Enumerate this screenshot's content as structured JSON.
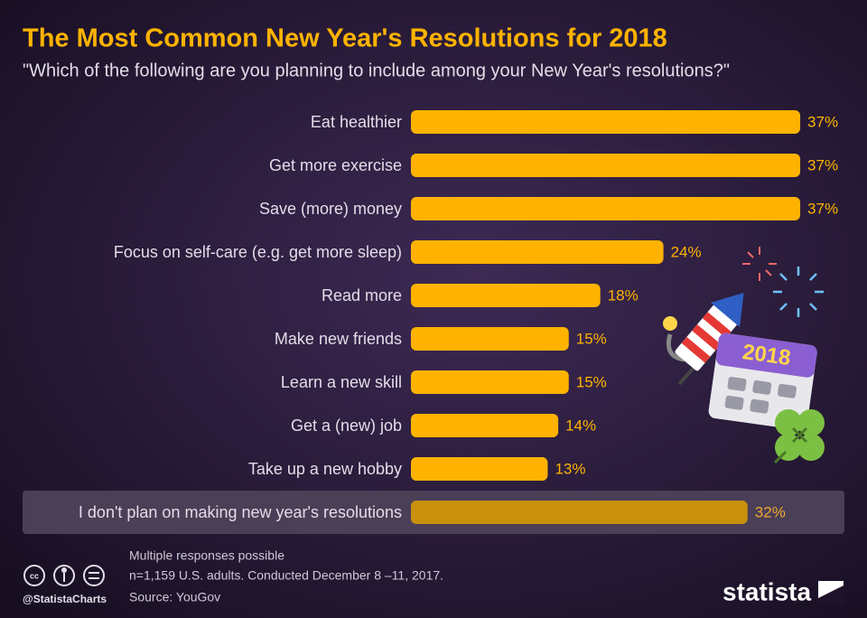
{
  "chart_data": {
    "type": "barh",
    "title": "The Most Common New Year's Resolutions for 2018",
    "subtitle": "\"Which of the following are you planning to include among your New Year's resolutions?\"",
    "categories": [
      "Eat healthier",
      "Get more exercise",
      "Save (more) money",
      "Focus on self-care (e.g. get more sleep)",
      "Read more",
      "Make new friends",
      "Learn a new skill",
      "Get a (new) job",
      "Take up a new hobby",
      "I don't plan on making new year's resolutions"
    ],
    "values": [
      37,
      37,
      37,
      24,
      18,
      15,
      15,
      14,
      13,
      32
    ],
    "value_labels": [
      "37%",
      "37%",
      "37%",
      "24%",
      "18%",
      "15%",
      "15%",
      "14%",
      "13%",
      "32%"
    ],
    "colors": [
      "#ffb300",
      "#ffb300",
      "#ffb300",
      "#ffb300",
      "#ffb300",
      "#ffb300",
      "#ffb300",
      "#ffb300",
      "#ffb300",
      "#c8900d"
    ],
    "highlighted": [
      false,
      false,
      false,
      false,
      false,
      false,
      false,
      false,
      false,
      true
    ],
    "highlight_background": "#4a3f56",
    "notes": [
      "Multiple responses possible",
      "n=1,159 U.S. adults. Conducted December 8 –11, 2017.",
      "Source: YouGov"
    ],
    "credit": "@StatistaCharts",
    "brand": "statista",
    "illustration_text": "2018"
  }
}
